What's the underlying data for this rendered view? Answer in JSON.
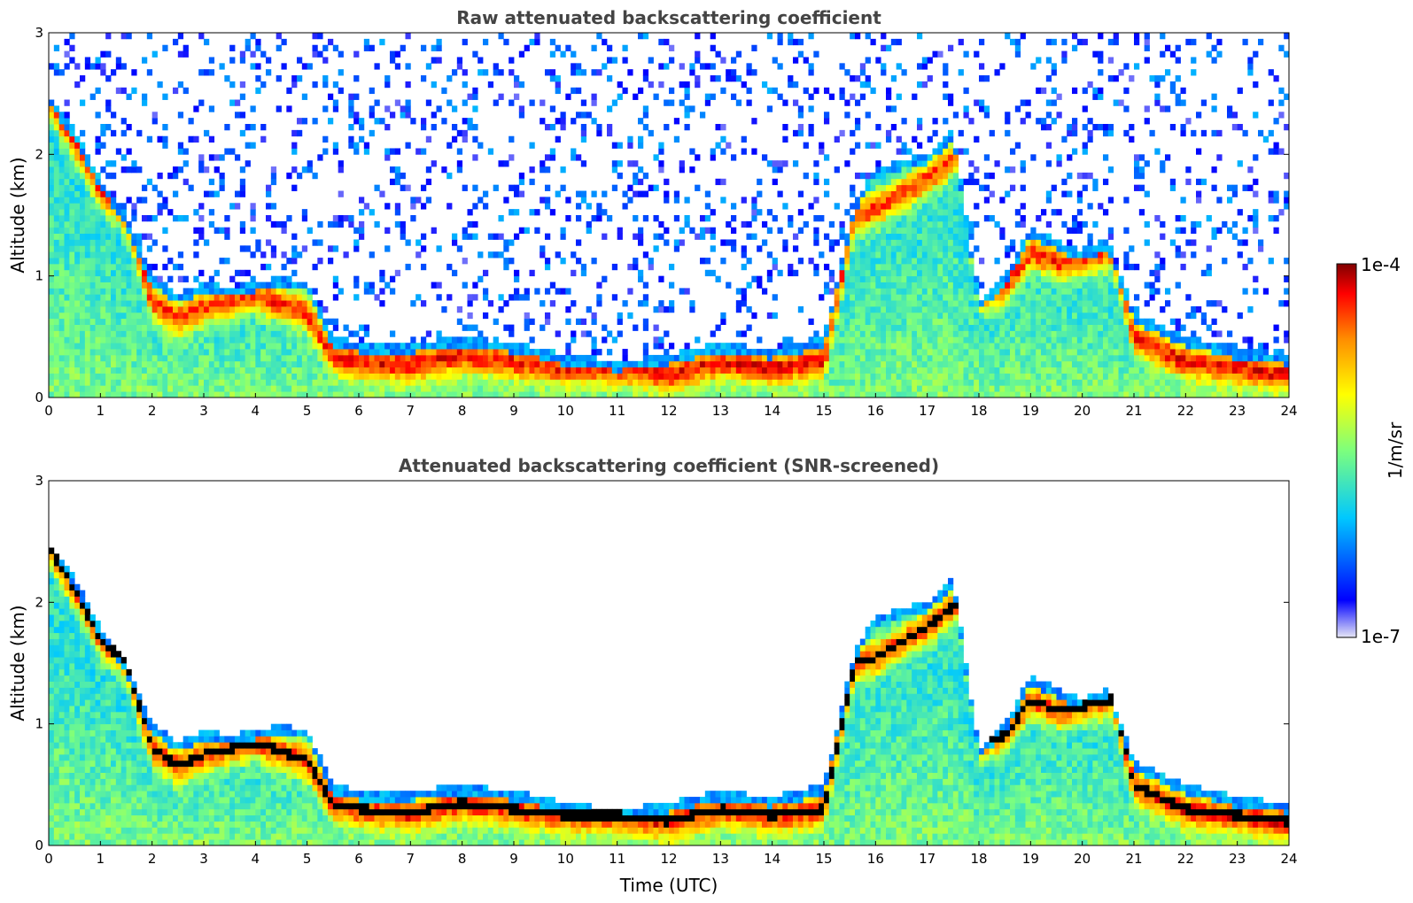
{
  "chart_data": [
    {
      "type": "heatmap",
      "title": "Raw attenuated backscattering coefficient",
      "xlabel": "",
      "ylabel": "Altitude (km)",
      "xlim": [
        0,
        24
      ],
      "ylim": [
        0,
        3
      ],
      "x_ticks": [
        "0",
        "1",
        "2",
        "3",
        "4",
        "5",
        "6",
        "7",
        "8",
        "9",
        "10",
        "11",
        "12",
        "13",
        "14",
        "15",
        "16",
        "17",
        "18",
        "19",
        "20",
        "21",
        "22",
        "23",
        "24"
      ],
      "y_ticks": [
        "0",
        "1",
        "2",
        "3"
      ],
      "screened": false,
      "layer_top_km": [
        [
          0,
          2.5
        ],
        [
          0.5,
          2.2
        ],
        [
          1,
          1.8
        ],
        [
          1.5,
          1.5
        ],
        [
          2,
          1.0
        ],
        [
          2.5,
          0.85
        ],
        [
          3,
          0.95
        ],
        [
          3.5,
          0.9
        ],
        [
          4,
          0.95
        ],
        [
          4.5,
          1.0
        ],
        [
          5,
          0.95
        ],
        [
          5.5,
          0.5
        ],
        [
          6,
          0.45
        ],
        [
          7,
          0.45
        ],
        [
          8,
          0.5
        ],
        [
          9,
          0.45
        ],
        [
          10,
          0.35
        ],
        [
          11,
          0.3
        ],
        [
          12,
          0.35
        ],
        [
          13,
          0.45
        ],
        [
          14,
          0.4
        ],
        [
          15,
          0.5
        ],
        [
          15.6,
          1.6
        ],
        [
          16,
          1.9
        ],
        [
          17,
          2.0
        ],
        [
          17.5,
          2.2
        ],
        [
          18,
          0.8
        ],
        [
          18.5,
          1.0
        ],
        [
          19,
          1.4
        ],
        [
          19.5,
          1.3
        ],
        [
          20,
          1.2
        ],
        [
          20.5,
          1.3
        ],
        [
          21,
          0.7
        ],
        [
          22,
          0.5
        ],
        [
          23,
          0.4
        ],
        [
          24,
          0.35
        ]
      ],
      "strong_layer_km": [
        [
          0,
          2.45
        ],
        [
          0.5,
          2.1
        ],
        [
          1,
          1.7
        ],
        [
          1.5,
          1.5
        ],
        [
          2,
          0.8
        ],
        [
          2.5,
          0.65
        ],
        [
          3,
          0.75
        ],
        [
          3.5,
          0.8
        ],
        [
          4,
          0.85
        ],
        [
          5,
          0.7
        ],
        [
          5.5,
          0.35
        ],
        [
          6,
          0.3
        ],
        [
          7,
          0.27
        ],
        [
          8,
          0.35
        ],
        [
          9,
          0.3
        ],
        [
          10,
          0.25
        ],
        [
          11,
          0.25
        ],
        [
          12,
          0.2
        ],
        [
          13,
          0.3
        ],
        [
          14,
          0.25
        ],
        [
          15,
          0.3
        ],
        [
          15.6,
          1.5
        ],
        [
          16,
          1.55
        ],
        [
          17,
          1.8
        ],
        [
          17.6,
          2.0
        ],
        [
          18,
          0.85
        ],
        [
          18.5,
          0.9
        ],
        [
          19,
          1.2
        ],
        [
          19.6,
          1.1
        ],
        [
          20,
          1.15
        ],
        [
          20.6,
          1.2
        ],
        [
          21,
          0.5
        ],
        [
          22,
          0.3
        ],
        [
          23,
          0.25
        ],
        [
          24,
          0.2
        ]
      ],
      "noise_region": "above boundary layer"
    },
    {
      "type": "heatmap",
      "title": "Attenuated backscattering coefficient (SNR-screened)",
      "xlabel": "Time (UTC)",
      "ylabel": "Altitude (km)",
      "xlim": [
        0,
        24
      ],
      "ylim": [
        0,
        3
      ],
      "x_ticks": [
        "0",
        "1",
        "2",
        "3",
        "4",
        "5",
        "6",
        "7",
        "8",
        "9",
        "10",
        "11",
        "12",
        "13",
        "14",
        "15",
        "16",
        "17",
        "18",
        "19",
        "20",
        "21",
        "22",
        "23",
        "24"
      ],
      "y_ticks": [
        "0",
        "1",
        "2",
        "3"
      ],
      "screened": true,
      "layer_top_km": [
        [
          0,
          2.5
        ],
        [
          0.5,
          2.2
        ],
        [
          1,
          1.8
        ],
        [
          1.5,
          1.5
        ],
        [
          2,
          1.0
        ],
        [
          2.5,
          0.85
        ],
        [
          3,
          0.95
        ],
        [
          3.5,
          0.9
        ],
        [
          4,
          0.95
        ],
        [
          4.5,
          1.0
        ],
        [
          5,
          0.95
        ],
        [
          5.5,
          0.5
        ],
        [
          6,
          0.45
        ],
        [
          7,
          0.45
        ],
        [
          8,
          0.5
        ],
        [
          9,
          0.45
        ],
        [
          10,
          0.35
        ],
        [
          11,
          0.3
        ],
        [
          12,
          0.35
        ],
        [
          13,
          0.45
        ],
        [
          14,
          0.4
        ],
        [
          15,
          0.5
        ],
        [
          15.6,
          1.6
        ],
        [
          16,
          1.9
        ],
        [
          17,
          2.0
        ],
        [
          17.5,
          2.2
        ],
        [
          18,
          0.8
        ],
        [
          18.5,
          1.0
        ],
        [
          19,
          1.4
        ],
        [
          19.5,
          1.3
        ],
        [
          20,
          1.2
        ],
        [
          20.5,
          1.3
        ],
        [
          21,
          0.7
        ],
        [
          22,
          0.5
        ],
        [
          23,
          0.4
        ],
        [
          24,
          0.35
        ]
      ],
      "strong_layer_km": [
        [
          0,
          2.45
        ],
        [
          0.5,
          2.1
        ],
        [
          1,
          1.7
        ],
        [
          1.5,
          1.5
        ],
        [
          2,
          0.8
        ],
        [
          2.5,
          0.65
        ],
        [
          3,
          0.75
        ],
        [
          3.5,
          0.8
        ],
        [
          4,
          0.85
        ],
        [
          5,
          0.7
        ],
        [
          5.5,
          0.35
        ],
        [
          6,
          0.3
        ],
        [
          7,
          0.27
        ],
        [
          8,
          0.35
        ],
        [
          9,
          0.3
        ],
        [
          10,
          0.25
        ],
        [
          11,
          0.25
        ],
        [
          12,
          0.2
        ],
        [
          13,
          0.3
        ],
        [
          14,
          0.25
        ],
        [
          15,
          0.3
        ],
        [
          15.6,
          1.5
        ],
        [
          16,
          1.55
        ],
        [
          17,
          1.8
        ],
        [
          17.6,
          2.0
        ],
        [
          18,
          0.85
        ],
        [
          18.5,
          0.9
        ],
        [
          19,
          1.2
        ],
        [
          19.6,
          1.1
        ],
        [
          20,
          1.15
        ],
        [
          20.6,
          1.2
        ],
        [
          21,
          0.5
        ],
        [
          22,
          0.3
        ],
        [
          23,
          0.25
        ],
        [
          24,
          0.2
        ]
      ],
      "noise_region": "removed"
    }
  ],
  "colorbar": {
    "max_label": "1e-4",
    "min_label": "1e-7",
    "unit_label": "1/m/sr",
    "colormap": [
      "#e6e6f5",
      "#0000ff",
      "#00c8ff",
      "#7dff7d",
      "#ffff00",
      "#ff8c00",
      "#ff0000",
      "#800000"
    ]
  },
  "colors": {
    "screened_strong": "#000000",
    "frame": "#000000",
    "title": "#444444"
  }
}
